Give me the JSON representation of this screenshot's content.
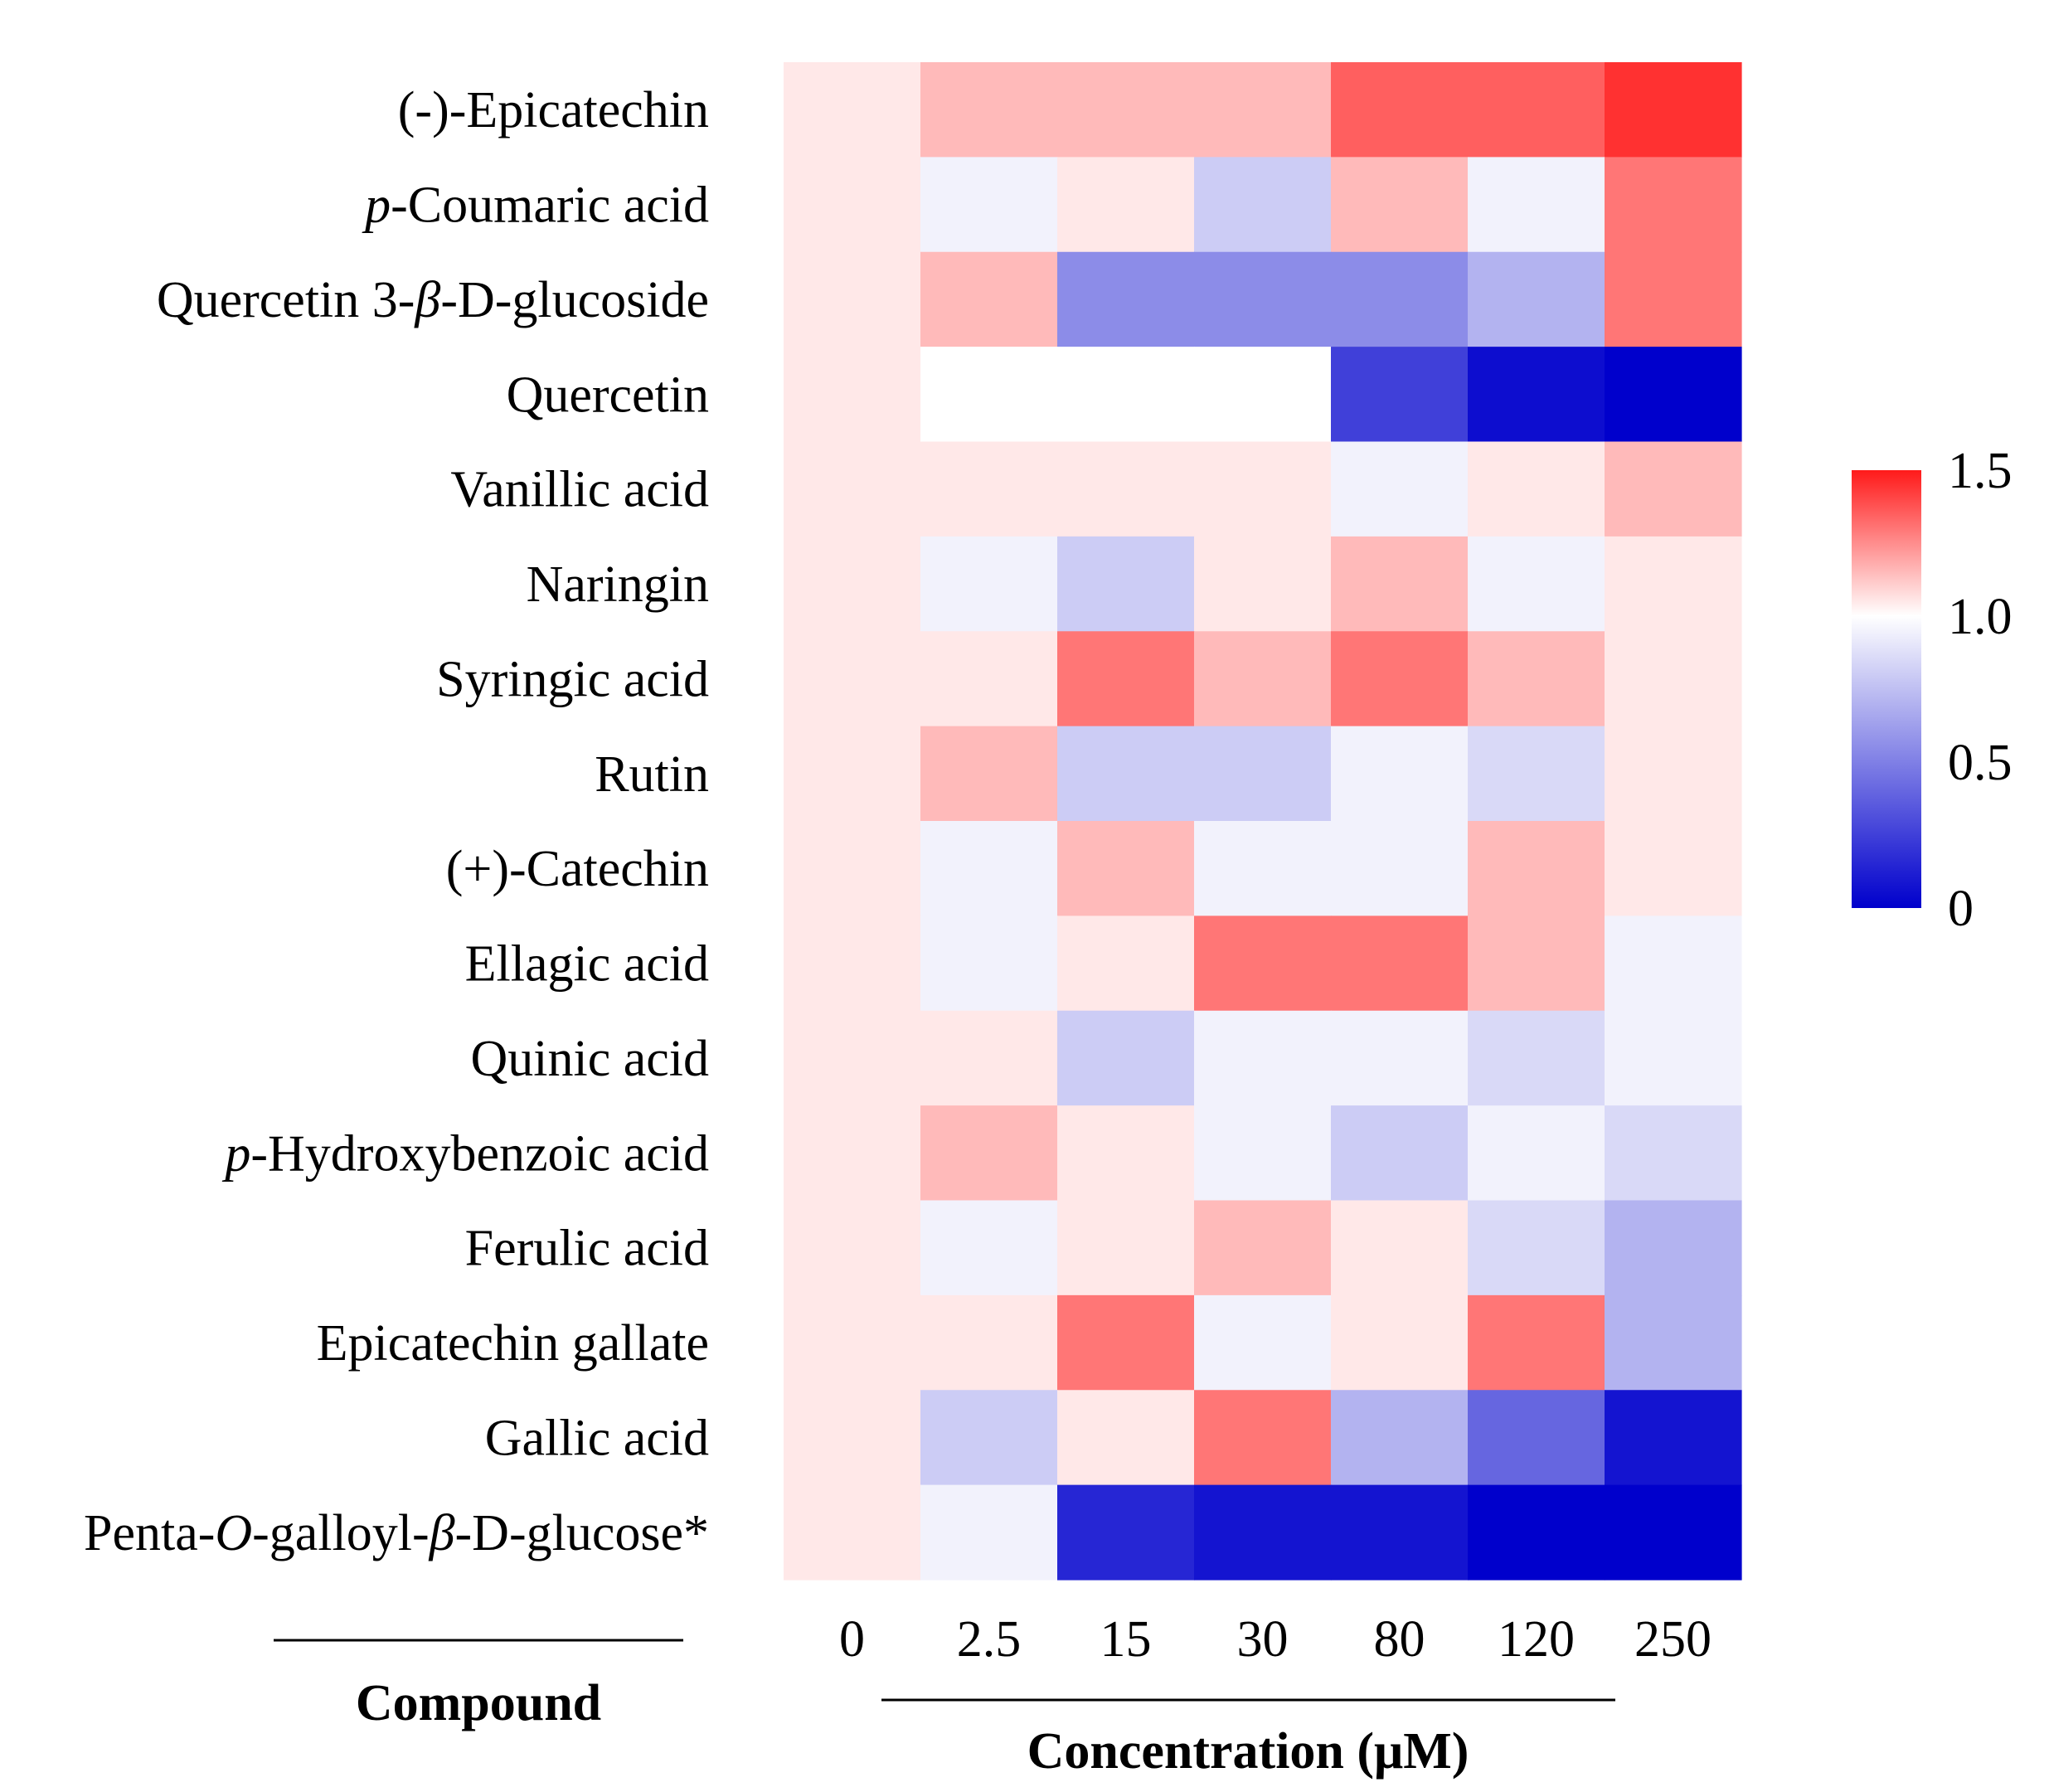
{
  "chart_data": {
    "type": "heatmap",
    "rows": [
      {
        "pre": "",
        "it": "",
        "post": "(-)-Epicatechin"
      },
      {
        "pre": "",
        "it": "p",
        "post": "-Coumaric acid"
      },
      {
        "pre": "Quercetin 3-",
        "it": "β",
        "post": "-D-glucoside"
      },
      {
        "pre": "",
        "it": "",
        "post": "Quercetin"
      },
      {
        "pre": "",
        "it": "",
        "post": "Vanillic acid"
      },
      {
        "pre": "",
        "it": "",
        "post": "Naringin"
      },
      {
        "pre": "",
        "it": "",
        "post": "Syringic acid"
      },
      {
        "pre": "",
        "it": "",
        "post": "Rutin"
      },
      {
        "pre": "",
        "it": "",
        "post": "(+)-Catechin"
      },
      {
        "pre": "",
        "it": "",
        "post": "Ellagic acid"
      },
      {
        "pre": "",
        "it": "",
        "post": "Quinic acid"
      },
      {
        "pre": "",
        "it": "p",
        "post": "-Hydroxybenzoic acid"
      },
      {
        "pre": "",
        "it": "",
        "post": "Ferulic acid"
      },
      {
        "pre": "",
        "it": "",
        "post": "Epicatechin gallate"
      },
      {
        "pre": "",
        "it": "",
        "post": "Gallic acid"
      },
      {
        "pre": "Penta-",
        "it": "O",
        "post": "-galloyl-",
        "it2": "β",
        "post2": "-D-glucose*"
      }
    ],
    "columns": [
      "0",
      "2.5",
      "15",
      "30",
      "80",
      "120",
      "250"
    ],
    "values": [
      [
        1.05,
        1.15,
        1.15,
        1.15,
        1.35,
        1.35,
        1.45
      ],
      [
        1.05,
        0.95,
        1.05,
        0.8,
        1.15,
        0.95,
        1.3
      ],
      [
        1.05,
        1.15,
        0.55,
        0.55,
        0.55,
        0.7,
        1.3
      ],
      [
        1.05,
        1.0,
        1.0,
        1.0,
        0.25,
        0.05,
        0.0
      ],
      [
        1.05,
        1.05,
        1.05,
        1.05,
        0.95,
        1.05,
        1.15
      ],
      [
        1.05,
        0.95,
        0.8,
        1.05,
        1.15,
        0.95,
        1.05
      ],
      [
        1.05,
        1.05,
        1.3,
        1.15,
        1.3,
        1.15,
        1.05
      ],
      [
        1.05,
        1.15,
        0.8,
        0.8,
        0.95,
        0.85,
        1.05
      ],
      [
        1.05,
        0.95,
        1.15,
        0.95,
        0.95,
        1.15,
        1.05
      ],
      [
        1.05,
        0.95,
        1.05,
        1.3,
        1.3,
        1.15,
        0.95
      ],
      [
        1.05,
        1.05,
        0.8,
        0.95,
        0.95,
        0.85,
        0.95
      ],
      [
        1.05,
        1.15,
        1.05,
        0.95,
        0.8,
        0.95,
        0.85
      ],
      [
        1.05,
        0.95,
        1.05,
        1.15,
        1.05,
        0.85,
        0.7
      ],
      [
        1.05,
        1.05,
        1.3,
        0.95,
        1.05,
        1.3,
        0.7
      ],
      [
        1.05,
        0.8,
        1.05,
        1.3,
        0.7,
        0.4,
        0.08
      ],
      [
        1.05,
        0.95,
        0.15,
        0.08,
        0.08,
        0.0,
        0.0
      ]
    ],
    "xlabel": "Concentration (μM)",
    "ylabel": "Compound",
    "colorbar": {
      "range": [
        0,
        1.5
      ],
      "ticks": [
        "1.5",
        "1.0",
        "0.5",
        "0"
      ],
      "tick_values": [
        1.5,
        1.0,
        0.5,
        0
      ],
      "colors": {
        "low": "#0000cc",
        "mid": "#ffffff",
        "high": "#ff1a1a"
      }
    }
  }
}
